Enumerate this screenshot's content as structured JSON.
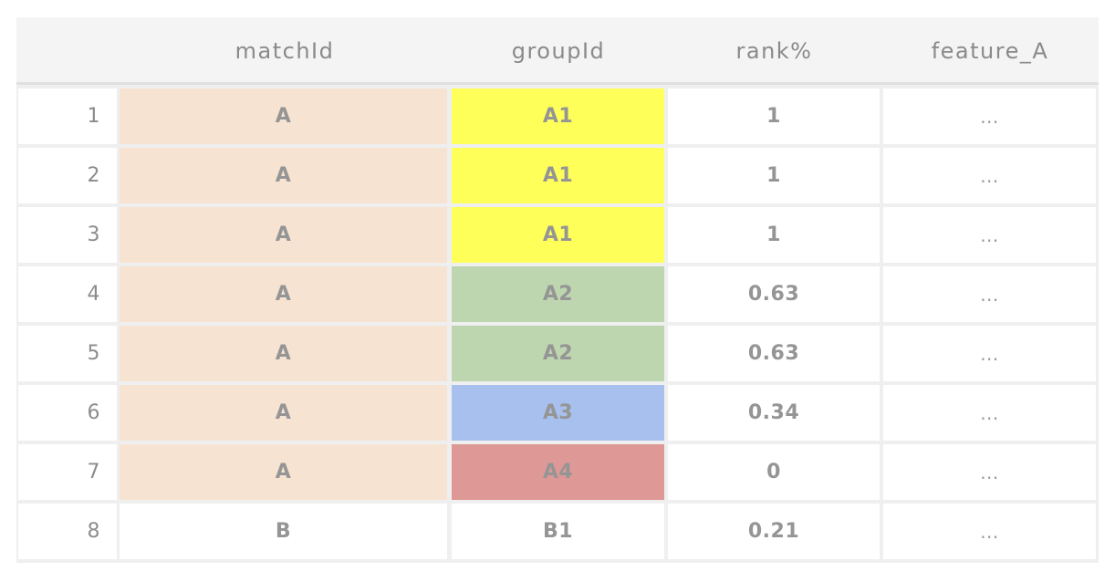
{
  "header": {
    "columns": [
      "matchId",
      "groupId",
      "rank%",
      "feature_A"
    ]
  },
  "colors": {
    "match_A": "#f6e3d2",
    "default_bg": "#ffffff",
    "group_A1": "#ffff5a",
    "group_A2": "#bdd6af",
    "group_A3": "#a8c0ee",
    "group_A4": "#de9997"
  },
  "rows": [
    {
      "index": "1",
      "matchId": "A",
      "groupId": "A1",
      "rank": "1",
      "feature_A": "...",
      "match_color": "#f6e3d2",
      "group_color": "#ffff5a"
    },
    {
      "index": "2",
      "matchId": "A",
      "groupId": "A1",
      "rank": "1",
      "feature_A": "...",
      "match_color": "#f6e3d2",
      "group_color": "#ffff5a"
    },
    {
      "index": "3",
      "matchId": "A",
      "groupId": "A1",
      "rank": "1",
      "feature_A": "...",
      "match_color": "#f6e3d2",
      "group_color": "#ffff5a"
    },
    {
      "index": "4",
      "matchId": "A",
      "groupId": "A2",
      "rank": "0.63",
      "feature_A": "...",
      "match_color": "#f6e3d2",
      "group_color": "#bdd6af"
    },
    {
      "index": "5",
      "matchId": "A",
      "groupId": "A2",
      "rank": "0.63",
      "feature_A": "...",
      "match_color": "#f6e3d2",
      "group_color": "#bdd6af"
    },
    {
      "index": "6",
      "matchId": "A",
      "groupId": "A3",
      "rank": "0.34",
      "feature_A": "...",
      "match_color": "#f6e3d2",
      "group_color": "#a8c0ee"
    },
    {
      "index": "7",
      "matchId": "A",
      "groupId": "A4",
      "rank": "0",
      "feature_A": "...",
      "match_color": "#f6e3d2",
      "group_color": "#de9997"
    },
    {
      "index": "8",
      "matchId": "B",
      "groupId": "B1",
      "rank": "0.21",
      "feature_A": "...",
      "match_color": "#ffffff",
      "group_color": "#ffffff"
    }
  ]
}
